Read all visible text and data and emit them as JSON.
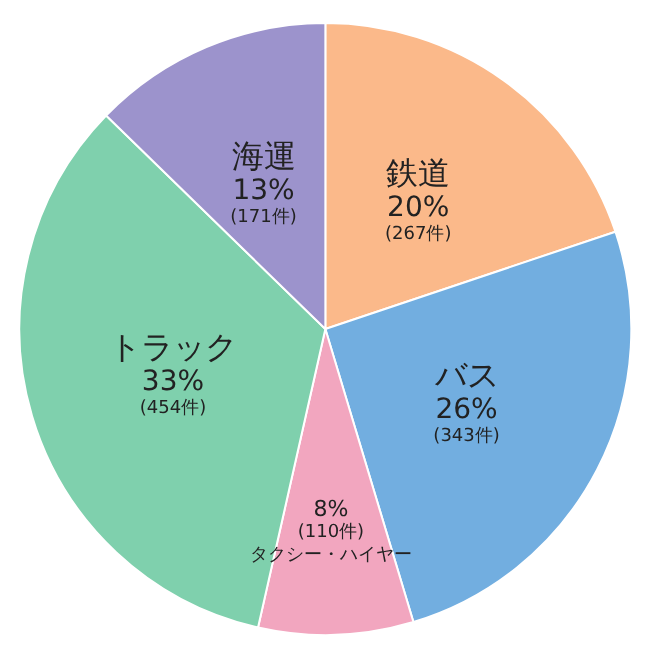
{
  "chart_data": {
    "type": "pie",
    "categories": [
      "鉄道",
      "バス",
      "タクシー・ハイヤー",
      "トラック",
      "海運"
    ],
    "values": [
      267,
      343,
      110,
      454,
      171
    ],
    "value_labels": [
      "20%\n(267件)",
      "26%\n(343件)",
      "8%\n(110件)",
      "33%\n(454件)",
      "13%\n(171件)"
    ],
    "colors": [
      "#fbb98a",
      "#72aee0",
      "#f2a6bf",
      "#7fd0ad",
      "#9c93cc"
    ],
    "legend": false
  }
}
